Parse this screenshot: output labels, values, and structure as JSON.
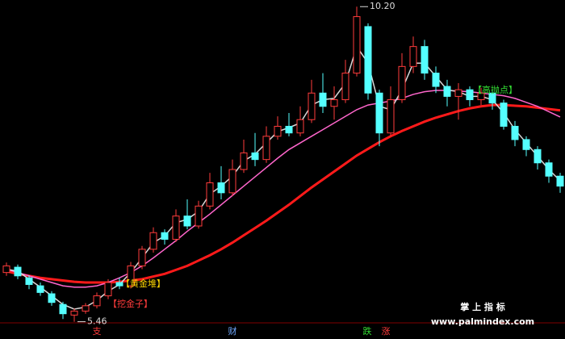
{
  "chart_data": {
    "type": "candlestick",
    "ylim": [
      5.2,
      10.3
    ],
    "up_color": "#ff3b3b",
    "down_color": "#54ffff",
    "open": [
      6.2,
      6.28,
      6.12,
      6.0,
      5.88,
      5.72,
      5.56,
      5.62,
      5.7,
      5.85,
      6.05,
      6.0,
      6.3,
      6.55,
      6.8,
      6.7,
      7.05,
      6.9,
      7.2,
      7.55,
      7.4,
      7.75,
      8.0,
      7.9,
      8.25,
      8.4,
      8.3,
      8.5,
      8.9,
      8.7,
      8.8,
      9.2,
      9.9,
      8.9,
      8.3,
      8.8,
      9.3,
      9.6,
      9.2,
      9.0,
      8.85,
      8.95,
      8.8,
      8.9,
      8.75,
      8.4,
      8.2,
      8.05,
      7.85,
      7.65
    ],
    "high": [
      6.35,
      6.32,
      6.16,
      6.05,
      5.92,
      5.76,
      5.66,
      5.74,
      5.9,
      6.1,
      6.12,
      6.36,
      6.6,
      6.88,
      6.85,
      7.15,
      7.3,
      7.28,
      7.7,
      7.8,
      7.9,
      8.2,
      8.3,
      8.4,
      8.55,
      8.6,
      8.7,
      9.1,
      9.2,
      9.0,
      9.4,
      10.2,
      9.95,
      8.95,
      9.0,
      9.5,
      9.75,
      9.7,
      9.3,
      9.1,
      9.05,
      9.0,
      8.98,
      8.95,
      8.8,
      8.48,
      8.25,
      8.1,
      7.9,
      7.7
    ],
    "low": [
      6.15,
      6.1,
      5.95,
      5.85,
      5.7,
      5.5,
      5.46,
      5.58,
      5.66,
      5.8,
      5.95,
      5.96,
      6.25,
      6.5,
      6.62,
      6.66,
      6.85,
      6.86,
      7.15,
      7.3,
      7.35,
      7.7,
      7.8,
      7.85,
      8.2,
      8.25,
      8.25,
      8.45,
      8.6,
      8.5,
      8.75,
      9.15,
      8.8,
      8.1,
      8.25,
      8.75,
      9.2,
      9.1,
      8.9,
      8.7,
      8.5,
      8.7,
      8.72,
      8.65,
      8.35,
      8.1,
      7.95,
      7.75,
      7.55,
      7.4
    ],
    "close": [
      6.3,
      6.15,
      6.02,
      5.9,
      5.75,
      5.58,
      5.62,
      5.7,
      5.85,
      6.05,
      6.0,
      6.3,
      6.55,
      6.8,
      6.7,
      7.05,
      6.9,
      7.2,
      7.55,
      7.4,
      7.75,
      8.0,
      7.9,
      8.25,
      8.4,
      8.3,
      8.5,
      8.9,
      8.7,
      8.8,
      9.2,
      10.05,
      8.9,
      8.3,
      8.8,
      9.3,
      9.6,
      9.2,
      9.0,
      8.85,
      8.95,
      8.8,
      8.9,
      8.75,
      8.4,
      8.2,
      8.05,
      7.85,
      7.65,
      7.5
    ],
    "lines": [
      {
        "color": "#ff1a1a",
        "values": [
          6.22,
          6.18,
          6.15,
          6.12,
          6.1,
          6.08,
          6.06,
          6.05,
          6.05,
          6.05,
          6.06,
          6.08,
          6.1,
          6.14,
          6.18,
          6.24,
          6.3,
          6.38,
          6.46,
          6.55,
          6.65,
          6.76,
          6.87,
          6.98,
          7.1,
          7.22,
          7.35,
          7.48,
          7.6,
          7.72,
          7.84,
          7.96,
          8.06,
          8.16,
          8.25,
          8.33,
          8.4,
          8.47,
          8.53,
          8.58,
          8.63,
          8.67,
          8.7,
          8.72,
          8.72,
          8.71,
          8.7,
          8.68,
          8.66,
          8.64
        ]
      },
      {
        "color": "#ff66cc",
        "values": [
          6.25,
          6.2,
          6.15,
          6.1,
          6.05,
          6.0,
          5.98,
          5.98,
          6.0,
          6.05,
          6.12,
          6.2,
          6.3,
          6.42,
          6.55,
          6.68,
          6.82,
          6.95,
          7.08,
          7.22,
          7.36,
          7.5,
          7.64,
          7.78,
          7.92,
          8.05,
          8.15,
          8.25,
          8.35,
          8.45,
          8.55,
          8.65,
          8.72,
          8.75,
          8.78,
          8.82,
          8.88,
          8.92,
          8.94,
          8.94,
          8.93,
          8.92,
          8.9,
          8.88,
          8.86,
          8.82,
          8.76,
          8.7,
          8.62,
          8.54
        ]
      },
      {
        "color": "#d8d8d8",
        "values": [
          6.25,
          6.22,
          6.1,
          5.98,
          5.85,
          5.72,
          5.65,
          5.68,
          5.78,
          5.92,
          6.02,
          6.2,
          6.42,
          6.65,
          6.75,
          6.95,
          7.0,
          7.12,
          7.38,
          7.5,
          7.65,
          7.88,
          7.98,
          8.15,
          8.32,
          8.38,
          8.45,
          8.72,
          8.8,
          8.82,
          9.05,
          9.6,
          9.35,
          8.7,
          8.65,
          8.95,
          9.35,
          9.35,
          9.15,
          8.95,
          8.92,
          8.85,
          8.85,
          8.8,
          8.6,
          8.35,
          8.15,
          7.95,
          7.75,
          7.58
        ]
      }
    ],
    "extremes": [
      {
        "value": 10.2,
        "label": "10.20"
      },
      {
        "value": 5.46,
        "label": "5.46"
      }
    ],
    "annotations": [
      {
        "text": "【黄金堆】",
        "color": "#ffd700"
      },
      {
        "text": "【挖金子】",
        "color": "#ff3b3b"
      },
      {
        "text": "【高抛点】",
        "color": "#33dd33"
      }
    ],
    "footer": [
      {
        "text": "支",
        "color": "#ff3b3b"
      },
      {
        "text": "财",
        "color": "#6fa8ff"
      },
      {
        "text": "跌",
        "color": "#33dd33"
      },
      {
        "text": "涨",
        "color": "#ff3b3b"
      }
    ],
    "watermark": {
      "title": "掌 上 指 标",
      "url": "www.palmindex.com"
    }
  }
}
